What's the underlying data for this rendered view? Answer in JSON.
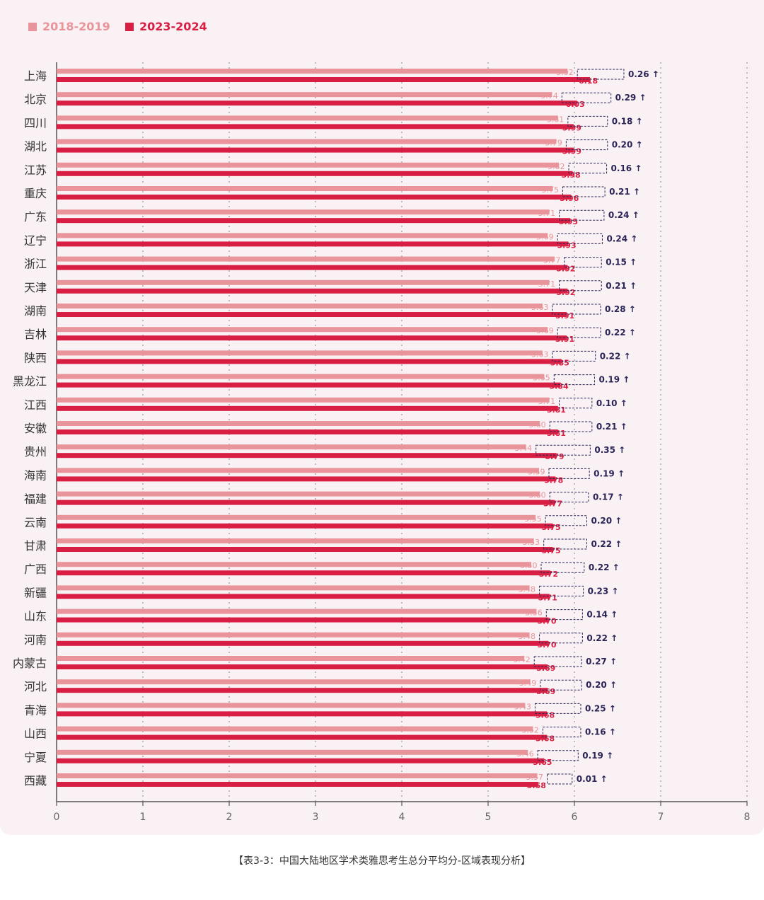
{
  "colors": {
    "series_2018": "#e8949a",
    "series_2023": "#d81e43",
    "delta_text": "#2b2457",
    "grid": "#999999",
    "axis": "#555555",
    "panel_bg": "#f9f1f3"
  },
  "caption": "【表3-3：中国大陆地区学术类雅思考生总分平均分-区域表现分析】",
  "chart_data": {
    "type": "bar",
    "orientation": "horizontal",
    "legend_position": "top-left",
    "grid": "vertical-dotted",
    "xlim": [
      0,
      8
    ],
    "x_ticks": [
      "0",
      "1",
      "2",
      "3",
      "4",
      "5",
      "6",
      "7",
      "8"
    ],
    "categories": [
      "上海",
      "北京",
      "四川",
      "湖北",
      "江苏",
      "重庆",
      "广东",
      "辽宁",
      "浙江",
      "天津",
      "湖南",
      "吉林",
      "陕西",
      "黑龙江",
      "江西",
      "安徽",
      "贵州",
      "海南",
      "福建",
      "云南",
      "甘肃",
      "广西",
      "新疆",
      "山东",
      "河南",
      "内蒙古",
      "河北",
      "青海",
      "山西",
      "宁夏",
      "西藏"
    ],
    "series": [
      {
        "name": "2018-2019",
        "values": [
          5.92,
          5.74,
          5.81,
          5.79,
          5.82,
          5.75,
          5.71,
          5.69,
          5.77,
          5.71,
          5.63,
          5.69,
          5.63,
          5.65,
          5.71,
          5.6,
          5.44,
          5.59,
          5.6,
          5.55,
          5.53,
          5.5,
          5.48,
          5.56,
          5.48,
          5.42,
          5.49,
          5.43,
          5.52,
          5.46,
          5.57
        ],
        "labels": [
          "5.92",
          "5.74",
          "5.81",
          "5.79",
          "5.82",
          "5.75",
          "5.71",
          "5.69",
          "5.77",
          "5.71",
          "5.63",
          "5.69",
          "5.63",
          "5.65",
          "5.71",
          "5.60",
          "5.44",
          "5.59",
          "5.60",
          "5.55",
          "5.53",
          "5.50",
          "5.48",
          "5.56",
          "5.48",
          "5.42",
          "5.49",
          "5.43",
          "5.52",
          "5.46",
          "5.57"
        ]
      },
      {
        "name": "2023-2024",
        "values": [
          6.18,
          6.03,
          5.99,
          5.99,
          5.98,
          5.96,
          5.95,
          5.93,
          5.92,
          5.92,
          5.91,
          5.91,
          5.85,
          5.84,
          5.81,
          5.81,
          5.79,
          5.78,
          5.77,
          5.75,
          5.75,
          5.72,
          5.71,
          5.7,
          5.7,
          5.69,
          5.69,
          5.68,
          5.68,
          5.65,
          5.58
        ],
        "labels": [
          "6.18",
          "6.03",
          "5.99",
          "5.99",
          "5.98",
          "5.96",
          "5.95",
          "5.93",
          "5.92",
          "5.92",
          "5.91",
          "5.91",
          "5.85",
          "5.84",
          "5.81",
          "5.81",
          "5.79",
          "5.78",
          "5.77",
          "5.75",
          "5.75",
          "5.72",
          "5.71",
          "5.70",
          "5.70",
          "5.69",
          "5.69",
          "5.68",
          "5.68",
          "5.65",
          "5.58"
        ]
      }
    ],
    "deltas": [
      "0.26 ↑",
      "0.29 ↑",
      "0.18 ↑",
      "0.20 ↑",
      "0.16 ↑",
      "0.21 ↑",
      "0.24 ↑",
      "0.24 ↑",
      "0.15 ↑",
      "0.21 ↑",
      "0.28 ↑",
      "0.22 ↑",
      "0.22 ↑",
      "0.19 ↑",
      "0.10 ↑",
      "0.21 ↑",
      "0.35 ↑",
      "0.19 ↑",
      "0.17 ↑",
      "0.20 ↑",
      "0.22 ↑",
      "0.22 ↑",
      "0.23 ↑",
      "0.14 ↑",
      "0.22 ↑",
      "0.27 ↑",
      "0.20 ↑",
      "0.25 ↑",
      "0.16 ↑",
      "0.19 ↑",
      "0.01 ↑"
    ]
  }
}
